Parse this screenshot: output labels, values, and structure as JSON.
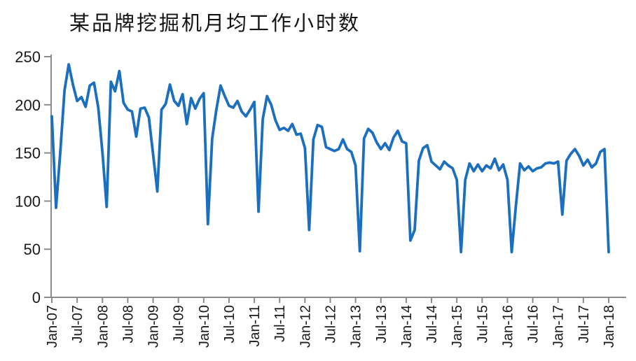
{
  "title": "某品牌挖掘机月均工作小时数",
  "colors": {
    "line": "#1B6FBE",
    "axis": "#8A8A8A",
    "tick_label": "#1A1A1A",
    "title_text": "#151515",
    "background": "#FFFFFF"
  },
  "chart_data": {
    "type": "line",
    "title": "某品牌挖掘机月均工作小时数",
    "xlabel": "",
    "ylabel": "",
    "ylim": [
      0,
      250
    ],
    "y_ticks": [
      0,
      50,
      100,
      150,
      200,
      250
    ],
    "grid": false,
    "legend": "none",
    "x_start": "Jan-07",
    "x_end": "Jan-18",
    "x_frequency": "monthly",
    "x_tick_step_months": 6,
    "x_tick_labels": [
      "Jan-07",
      "Jul-07",
      "Jan-08",
      "Jul-08",
      "Jan-09",
      "Jul-09",
      "Jan-10",
      "Jul-10",
      "Jan-11",
      "Jul-11",
      "Jan-12",
      "Jul-12",
      "Jan-13",
      "Jul-13",
      "Jan-14",
      "Jul-14",
      "Jan-15",
      "Jul-15",
      "Jan-16",
      "Jul-16",
      "Jan-17",
      "Jul-17",
      "Jan-18"
    ],
    "values": [
      188,
      93,
      150,
      215,
      242,
      221,
      204,
      208,
      198,
      220,
      223,
      197,
      150,
      94,
      224,
      214,
      235,
      202,
      195,
      193,
      167,
      196,
      197,
      187,
      149,
      110,
      195,
      201,
      221,
      204,
      199,
      211,
      180,
      207,
      196,
      206,
      212,
      76,
      165,
      195,
      220,
      209,
      199,
      197,
      204,
      193,
      188,
      195,
      203,
      89,
      185,
      209,
      200,
      184,
      174,
      176,
      173,
      180,
      169,
      170,
      155,
      70,
      164,
      179,
      177,
      156,
      154,
      152,
      154,
      164,
      154,
      151,
      137,
      48,
      165,
      175,
      171,
      161,
      154,
      160,
      153,
      166,
      173,
      162,
      160,
      59,
      70,
      142,
      155,
      158,
      141,
      137,
      133,
      141,
      137,
      134,
      122,
      47,
      122,
      139,
      131,
      138,
      131,
      137,
      134,
      144,
      132,
      138,
      122,
      47,
      95,
      139,
      132,
      136,
      131,
      134,
      135,
      139,
      140,
      139,
      141,
      86,
      142,
      149,
      154,
      147,
      137,
      143,
      135,
      139,
      151,
      154,
      47
    ]
  }
}
